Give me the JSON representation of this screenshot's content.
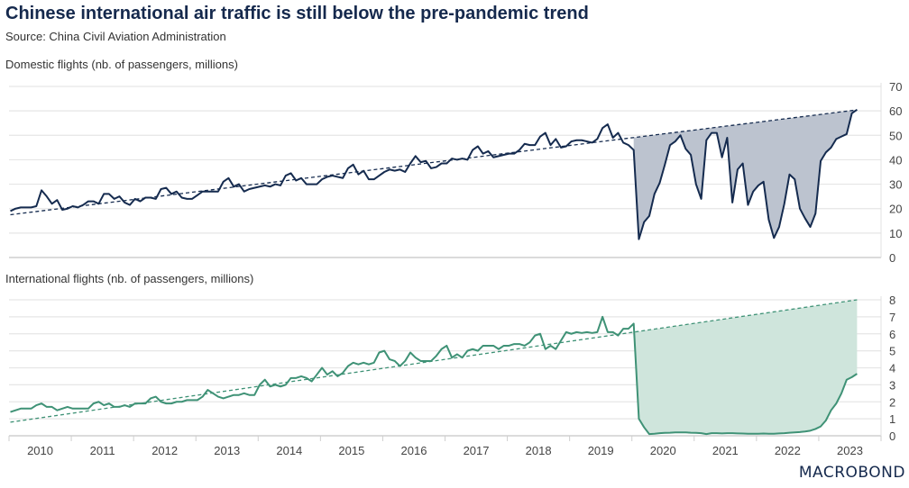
{
  "title": "Chinese international air traffic is still below the pre-pandemic trend",
  "source": "Source: China Civil Aviation Administration",
  "logo": "MACROBOND",
  "colors": {
    "domestic": "#152b4f",
    "domestic_fill": "#bcc3cf",
    "international": "#3f9276",
    "international_fill": "#cfe5dc",
    "grid": "#e6e6e6"
  },
  "chart_data": [
    {
      "type": "line",
      "title": "Domestic flights (nb. of passengers, millions)",
      "x_start": "2010-01",
      "frequency": "monthly",
      "ylim": [
        0,
        70
      ],
      "yticks": [
        0,
        10,
        20,
        30,
        40,
        50,
        60,
        70
      ],
      "y_axis": "right",
      "grid": true,
      "trend": {
        "start": 17.5,
        "end": 60.4,
        "style": "dashed"
      },
      "shaded_gap_from": "2020-01",
      "values": [
        19,
        20,
        20.5,
        20.5,
        20.5,
        21,
        27.5,
        25,
        22,
        23.5,
        19.5,
        20,
        21,
        20.5,
        21.5,
        23,
        23,
        22,
        26,
        26,
        24,
        25,
        22.5,
        21.5,
        24,
        23,
        24.5,
        24.5,
        24,
        28,
        28.5,
        26,
        27,
        24.5,
        24,
        24,
        25.5,
        27,
        27,
        27,
        27,
        31,
        32.5,
        29,
        30,
        27,
        28,
        28.5,
        29,
        29.5,
        29,
        30,
        29.5,
        33.5,
        34.5,
        31.5,
        32.5,
        30,
        30,
        30,
        32,
        33,
        33.5,
        33,
        32.5,
        36.5,
        38,
        34,
        35.5,
        32,
        32,
        33.5,
        35,
        36,
        35.5,
        36,
        35,
        38.5,
        41.5,
        39,
        39.5,
        36.5,
        37,
        38.5,
        38.5,
        40.5,
        40,
        40.5,
        40,
        44,
        45.5,
        42.5,
        43.5,
        41,
        41.5,
        42,
        42.5,
        42.5,
        44,
        46.5,
        46,
        46,
        49.5,
        51,
        46,
        48.5,
        45,
        45.5,
        47.5,
        48,
        48,
        47.5,
        47,
        48.5,
        53,
        54.5,
        49,
        51,
        47,
        46,
        44,
        7.5,
        14.5,
        17,
        26,
        30.5,
        38,
        46,
        47.5,
        50,
        44.5,
        42,
        30,
        24,
        48,
        51,
        51,
        41,
        49,
        22.5,
        36,
        38.5,
        21.5,
        27,
        29.5,
        31,
        15.5,
        8,
        12.5,
        22,
        34,
        32,
        20,
        16,
        12.5,
        18,
        39.5,
        43,
        45,
        48.5,
        49.5,
        50.5,
        59,
        60.5
      ]
    },
    {
      "type": "line",
      "title": "International flights (nb. of passengers, millions)",
      "x_start": "2010-01",
      "frequency": "monthly",
      "ylim": [
        0,
        8
      ],
      "yticks": [
        0,
        1,
        2,
        3,
        4,
        5,
        6,
        7,
        8
      ],
      "y_axis": "right",
      "grid": true,
      "xticks": [
        "2010",
        "2011",
        "2012",
        "2013",
        "2014",
        "2015",
        "2016",
        "2017",
        "2018",
        "2019",
        "2020",
        "2021",
        "2022",
        "2023"
      ],
      "trend": {
        "start": 0.8,
        "end": 8.0,
        "style": "dashed"
      },
      "shaded_gap_from": "2020-01",
      "values": [
        1.4,
        1.5,
        1.6,
        1.6,
        1.6,
        1.8,
        1.9,
        1.7,
        1.7,
        1.5,
        1.6,
        1.7,
        1.6,
        1.6,
        1.6,
        1.6,
        1.9,
        2.0,
        1.8,
        1.9,
        1.7,
        1.7,
        1.8,
        1.7,
        1.9,
        1.9,
        1.9,
        2.2,
        2.3,
        2.0,
        1.9,
        1.9,
        2.0,
        2.0,
        2.1,
        2.1,
        2.1,
        2.3,
        2.7,
        2.5,
        2.3,
        2.2,
        2.3,
        2.4,
        2.4,
        2.5,
        2.4,
        2.4,
        3.0,
        3.3,
        2.9,
        3.0,
        2.9,
        3.0,
        3.4,
        3.4,
        3.5,
        3.4,
        3.2,
        3.6,
        4.0,
        3.6,
        3.8,
        3.5,
        3.7,
        4.1,
        4.3,
        4.2,
        4.3,
        4.2,
        4.3,
        4.9,
        5.0,
        4.5,
        4.4,
        4.1,
        4.4,
        4.9,
        4.6,
        4.4,
        4.4,
        4.4,
        4.7,
        5.1,
        5.3,
        4.6,
        4.8,
        4.6,
        5.0,
        5.1,
        5.0,
        5.3,
        5.3,
        5.3,
        5.1,
        5.3,
        5.3,
        5.4,
        5.4,
        5.3,
        5.5,
        5.9,
        6.0,
        5.1,
        5.3,
        5.1,
        5.6,
        6.1,
        6.0,
        6.1,
        6.05,
        6.1,
        6.05,
        6.1,
        7.0,
        6.1,
        6.1,
        5.9,
        6.3,
        6.3,
        6.6,
        1.0,
        0.5,
        0.1,
        0.12,
        0.15,
        0.17,
        0.18,
        0.2,
        0.2,
        0.2,
        0.18,
        0.17,
        0.15,
        0.1,
        0.15,
        0.15,
        0.14,
        0.15,
        0.15,
        0.14,
        0.13,
        0.12,
        0.12,
        0.12,
        0.13,
        0.12,
        0.12,
        0.14,
        0.15,
        0.18,
        0.2,
        0.22,
        0.25,
        0.3,
        0.4,
        0.55,
        0.9,
        1.5,
        1.9,
        2.5,
        3.3,
        3.45,
        3.65
      ]
    }
  ]
}
